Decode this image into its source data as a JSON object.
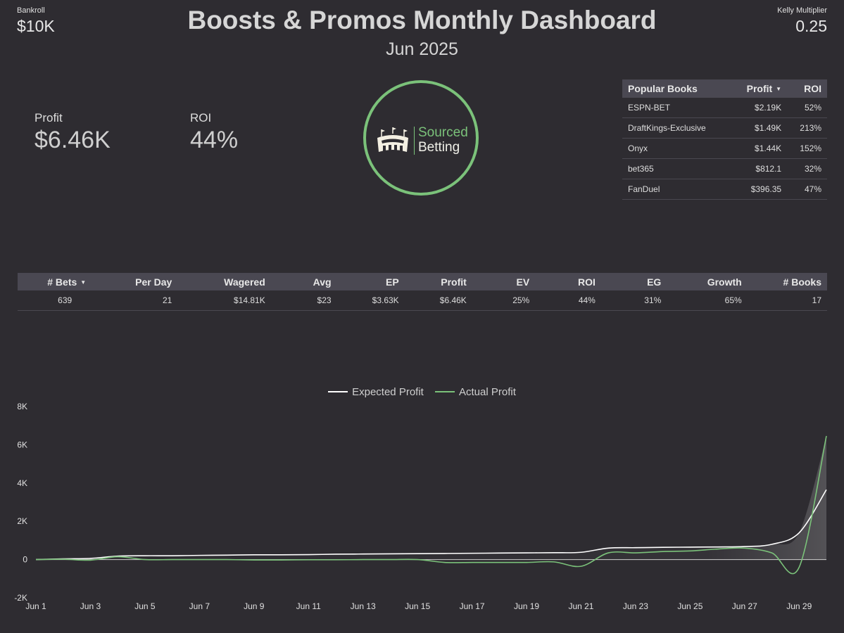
{
  "header": {
    "bankroll_label": "Bankroll",
    "bankroll_value": "$10K",
    "title": "Boosts & Promos Monthly Dashboard",
    "month": "Jun 2025",
    "kelly_label": "Kelly Multiplier",
    "kelly_value": "0.25"
  },
  "metrics": {
    "profit_label": "Profit",
    "profit_value": "$6.46K",
    "roi_label": "ROI",
    "roi_value": "44%"
  },
  "logo": {
    "line1": "Sourced",
    "line2": "Betting"
  },
  "books_table": {
    "headers": [
      "Popular Books",
      "Profit",
      "ROI"
    ],
    "sorted_column": "Profit",
    "rows": [
      [
        "ESPN-BET",
        "$2.19K",
        "52%"
      ],
      [
        "DraftKings-Exclusive",
        "$1.49K",
        "213%"
      ],
      [
        "Onyx",
        "$1.44K",
        "152%"
      ],
      [
        "bet365",
        "$812.1",
        "32%"
      ],
      [
        "FanDuel",
        "$396.35",
        "47%"
      ]
    ]
  },
  "stats_table": {
    "headers": [
      "# Bets",
      "Per Day",
      "Wagered",
      "Avg",
      "EP",
      "Profit",
      "EV",
      "ROI",
      "EG",
      "Growth",
      "# Books"
    ],
    "sorted_column": "# Bets",
    "row": [
      "639",
      "21",
      "$14.81K",
      "$23",
      "$3.63K",
      "$6.46K",
      "25%",
      "44%",
      "31%",
      "65%",
      "17"
    ]
  },
  "colors": {
    "background": "#2e2c31",
    "header_row": "#4a4852",
    "accent_green": "#7bc27a",
    "expected_line": "#ffffff",
    "actual_line": "#7bc27a"
  },
  "chart_data": {
    "type": "line",
    "title": "",
    "legend_position": "top-center",
    "xlabel": "",
    "ylabel": "",
    "ylim": [
      -2000,
      8000
    ],
    "yticks": [
      -2000,
      0,
      2000,
      4000,
      6000,
      8000
    ],
    "ytick_labels": [
      "-2K",
      "0",
      "2K",
      "4K",
      "6K",
      "8K"
    ],
    "xtick_labels": [
      "Jun 1",
      "Jun 3",
      "Jun 5",
      "Jun 7",
      "Jun 9",
      "Jun 11",
      "Jun 13",
      "Jun 15",
      "Jun 17",
      "Jun 19",
      "Jun 21",
      "Jun 23",
      "Jun 25",
      "Jun 27",
      "Jun 29"
    ],
    "x": [
      1,
      2,
      3,
      4,
      5,
      6,
      7,
      8,
      9,
      10,
      11,
      12,
      13,
      14,
      15,
      16,
      17,
      18,
      19,
      20,
      21,
      22,
      23,
      24,
      25,
      26,
      27,
      28,
      29,
      30
    ],
    "series": [
      {
        "name": "Expected Profit",
        "color": "#ffffff",
        "values": [
          0,
          40,
          60,
          180,
          200,
          200,
          220,
          230,
          250,
          250,
          260,
          280,
          290,
          300,
          310,
          320,
          330,
          340,
          350,
          360,
          380,
          600,
          620,
          640,
          650,
          660,
          680,
          800,
          1400,
          3650
        ]
      },
      {
        "name": "Actual Profit",
        "color": "#7bc27a",
        "values": [
          0,
          20,
          -30,
          150,
          0,
          0,
          0,
          0,
          -20,
          -20,
          -10,
          -10,
          0,
          0,
          0,
          -150,
          -150,
          -150,
          -150,
          -120,
          -350,
          350,
          350,
          420,
          450,
          550,
          600,
          350,
          -400,
          6460
        ]
      }
    ]
  }
}
